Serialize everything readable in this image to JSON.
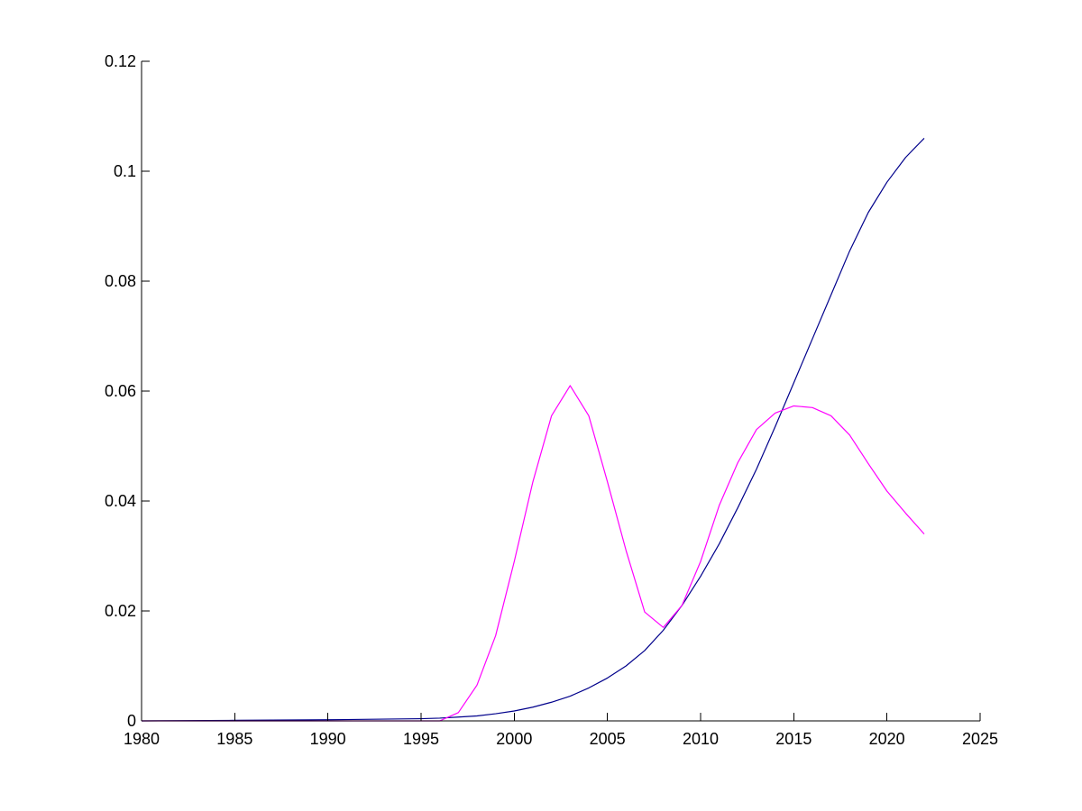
{
  "chart_data": {
    "type": "line",
    "title": "",
    "xlabel": "",
    "ylabel": "",
    "xlim": [
      1980,
      2025
    ],
    "ylim": [
      0,
      0.12
    ],
    "grid": false,
    "legend": "none",
    "x_ticks": [
      1980,
      1985,
      1990,
      1995,
      2000,
      2005,
      2010,
      2015,
      2020,
      2025
    ],
    "x_tick_labels": [
      "1980",
      "1985",
      "1990",
      "1995",
      "2000",
      "2005",
      "2010",
      "2015",
      "2020",
      "2025"
    ],
    "y_ticks": [
      0,
      0.02,
      0.04,
      0.06,
      0.08,
      0.1,
      0.12
    ],
    "y_tick_labels": [
      "0",
      "0.02",
      "0.04",
      "0.06",
      "0.08",
      "0.1",
      "0.12"
    ],
    "series": [
      {
        "color": "#00008b",
        "points": [
          [
            1980,
            0.0
          ],
          [
            1985,
            0.0001
          ],
          [
            1990,
            0.0002
          ],
          [
            1995,
            0.0004
          ],
          [
            1996,
            0.0005
          ],
          [
            1997,
            0.0007
          ],
          [
            1998,
            0.0009
          ],
          [
            1999,
            0.0013
          ],
          [
            2000,
            0.0018
          ],
          [
            2001,
            0.0025
          ],
          [
            2002,
            0.0034
          ],
          [
            2003,
            0.0045
          ],
          [
            2004,
            0.006
          ],
          [
            2005,
            0.0078
          ],
          [
            2006,
            0.01
          ],
          [
            2007,
            0.0128
          ],
          [
            2008,
            0.0165
          ],
          [
            2009,
            0.021
          ],
          [
            2010,
            0.0263
          ],
          [
            2011,
            0.0322
          ],
          [
            2012,
            0.0388
          ],
          [
            2013,
            0.0458
          ],
          [
            2014,
            0.0535
          ],
          [
            2015,
            0.0615
          ],
          [
            2016,
            0.0695
          ],
          [
            2017,
            0.0775
          ],
          [
            2018,
            0.0855
          ],
          [
            2019,
            0.0925
          ],
          [
            2020,
            0.098
          ],
          [
            2021,
            0.1025
          ],
          [
            2022,
            0.106
          ]
        ]
      },
      {
        "color": "#ff00ff",
        "points": [
          [
            1980,
            0.0
          ],
          [
            1996,
            0.0
          ],
          [
            1997,
            0.0015
          ],
          [
            1998,
            0.0065
          ],
          [
            1999,
            0.0155
          ],
          [
            2000,
            0.029
          ],
          [
            2001,
            0.0435
          ],
          [
            2002,
            0.0555
          ],
          [
            2003,
            0.061
          ],
          [
            2004,
            0.0555
          ],
          [
            2005,
            0.0435
          ],
          [
            2006,
            0.031
          ],
          [
            2007,
            0.0198
          ],
          [
            2008,
            0.017
          ],
          [
            2009,
            0.021
          ],
          [
            2010,
            0.029
          ],
          [
            2011,
            0.0392
          ],
          [
            2012,
            0.047
          ],
          [
            2013,
            0.053
          ],
          [
            2014,
            0.056
          ],
          [
            2015,
            0.0573
          ],
          [
            2016,
            0.057
          ],
          [
            2017,
            0.0555
          ],
          [
            2018,
            0.052
          ],
          [
            2019,
            0.0468
          ],
          [
            2020,
            0.0418
          ],
          [
            2021,
            0.0378
          ],
          [
            2022,
            0.034
          ]
        ]
      }
    ]
  }
}
